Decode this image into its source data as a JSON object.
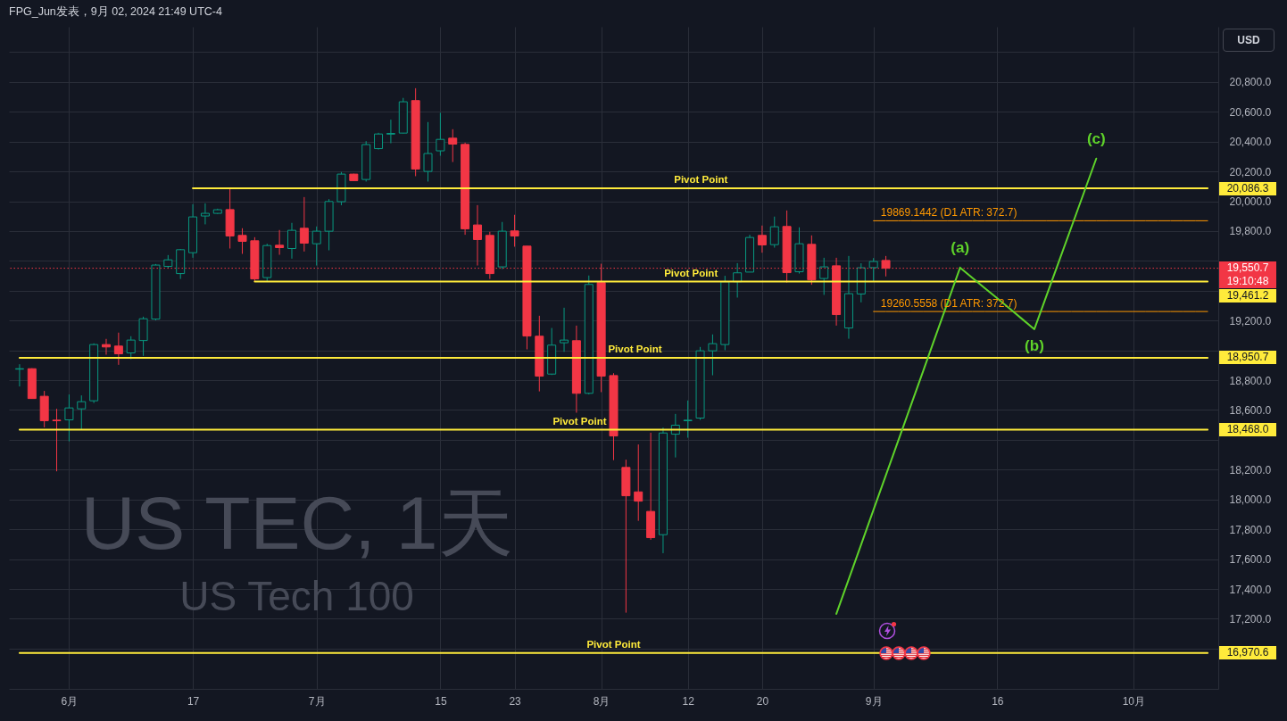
{
  "chart_data": {
    "type": "candlestick",
    "title": "US TEC, 1天",
    "subtitle": "US Tech 100",
    "categories": [
      null,
      null,
      null,
      null,
      "6月",
      null,
      null,
      null,
      null,
      null,
      null,
      null,
      null,
      null,
      "17",
      null,
      null,
      null,
      null,
      null,
      null,
      null,
      null,
      null,
      "7月",
      null,
      null,
      null,
      null,
      null,
      null,
      null,
      null,
      null,
      "15",
      null,
      null,
      null,
      null,
      null,
      "23",
      null,
      null,
      null,
      null,
      null,
      null,
      "8月",
      null,
      null,
      null,
      null,
      null,
      null,
      "12",
      null,
      null,
      null,
      null,
      null,
      "20",
      null,
      null,
      null,
      null,
      null,
      null,
      null,
      null,
      "9月",
      null,
      null,
      null,
      null,
      null,
      null,
      null,
      null,
      null,
      "16",
      null,
      null,
      null,
      null,
      null,
      null,
      null,
      null,
      null,
      null,
      "10月",
      null,
      null,
      null,
      null,
      null,
      null
    ],
    "ohlc": [
      [
        18874,
        18907,
        18758,
        18877
      ],
      [
        18877,
        18880,
        18675,
        18677
      ],
      [
        18692,
        18728,
        18484,
        18528
      ],
      [
        18532,
        18608,
        18189,
        18528
      ],
      [
        18534,
        18704,
        18390,
        18614
      ],
      [
        18608,
        18698,
        18468,
        18656
      ],
      [
        18662,
        19047,
        18647,
        19039
      ],
      [
        19039,
        19077,
        18971,
        19023
      ],
      [
        19029,
        19119,
        18903,
        18977
      ],
      [
        18983,
        19095,
        18941,
        19069
      ],
      [
        19066,
        19226,
        18963,
        19212
      ],
      [
        19210,
        19579,
        19202,
        19572
      ],
      [
        19563,
        19639,
        19549,
        19607
      ],
      [
        19515,
        19680,
        19479,
        19675
      ],
      [
        19655,
        19980,
        19621,
        19895
      ],
      [
        19901,
        19986,
        19845,
        19919
      ],
      [
        19919,
        19950,
        19915,
        19943
      ],
      [
        19944,
        20088,
        19683,
        19767
      ],
      [
        19771,
        19819,
        19647,
        19731
      ],
      [
        19735,
        19759,
        19460,
        19479
      ],
      [
        19488,
        19715,
        19461,
        19703
      ],
      [
        19705,
        19807,
        19641,
        19689
      ],
      [
        19683,
        19855,
        19615,
        19805
      ],
      [
        19819,
        20028,
        19663,
        19719
      ],
      [
        19715,
        19831,
        19569,
        19799
      ],
      [
        19799,
        20014,
        19671,
        19998
      ],
      [
        19997,
        20196,
        19973,
        20182
      ],
      [
        20182,
        20185,
        20136,
        20138
      ],
      [
        20146,
        20403,
        20132,
        20380
      ],
      [
        20353,
        20459,
        20347,
        20451
      ],
      [
        20450,
        20547,
        20389,
        20455
      ],
      [
        20457,
        20693,
        20455,
        20667
      ],
      [
        20675,
        20758,
        20168,
        20216
      ],
      [
        20200,
        20531,
        20132,
        20320
      ],
      [
        20338,
        20593,
        20305,
        20415
      ],
      [
        20423,
        20483,
        20263,
        20383
      ],
      [
        20381,
        20393,
        19775,
        19815
      ],
      [
        19841,
        19974,
        19569,
        19743
      ],
      [
        19771,
        19795,
        19479,
        19515
      ],
      [
        19560,
        19861,
        19545,
        19799
      ],
      [
        19801,
        19909,
        19695,
        19767
      ],
      [
        19699,
        19700,
        19007,
        19096
      ],
      [
        19095,
        19232,
        18725,
        18827
      ],
      [
        18841,
        19150,
        18835,
        19035
      ],
      [
        19051,
        19286,
        18990,
        19069
      ],
      [
        19065,
        19166,
        18582,
        18712
      ],
      [
        18712,
        19502,
        18705,
        19442
      ],
      [
        19455,
        19581,
        18720,
        18827
      ],
      [
        18831,
        18847,
        18264,
        18426
      ],
      [
        18215,
        18267,
        17241,
        18025
      ],
      [
        18051,
        18369,
        17857,
        17989
      ],
      [
        17920,
        18448,
        17730,
        17744
      ],
      [
        17764,
        18482,
        17640,
        18446
      ],
      [
        18438,
        18574,
        18282,
        18498
      ],
      [
        18528,
        18664,
        18414,
        18532
      ],
      [
        18546,
        19023,
        18534,
        18997
      ],
      [
        18997,
        19107,
        18833,
        19045
      ],
      [
        19039,
        19500,
        19001,
        19460
      ],
      [
        19460,
        19585,
        19354,
        19520
      ],
      [
        19525,
        19775,
        19525,
        19757
      ],
      [
        19771,
        19837,
        19655,
        19707
      ],
      [
        19709,
        19897,
        19689,
        19829
      ],
      [
        19831,
        19938,
        19455,
        19521
      ],
      [
        19527,
        19825,
        19515,
        19715
      ],
      [
        19711,
        19771,
        19440,
        19473
      ],
      [
        19482,
        19621,
        19372,
        19560
      ],
      [
        19567,
        19621,
        19166,
        19240
      ],
      [
        19150,
        19633,
        19078,
        19380
      ],
      [
        19378,
        19584,
        19322,
        19554
      ],
      [
        19555,
        19619,
        19460,
        19596
      ],
      [
        19603,
        19633,
        19496,
        19550.7
      ],
      null,
      null,
      null,
      null,
      null,
      null,
      null,
      null,
      null,
      null,
      null,
      null,
      null,
      null,
      null,
      null,
      null,
      null,
      null,
      null,
      null,
      null,
      null,
      null,
      null,
      null
    ],
    "colors": [
      "#089981",
      "#f23645",
      "#f23645",
      "#f23645",
      "#089981",
      "#089981",
      "#089981",
      "#f23645",
      "#f23645",
      "#089981",
      "#089981",
      "#089981",
      "#089981",
      "#089981",
      "#089981",
      "#089981",
      "#089981",
      "#f23645",
      "#f23645",
      "#f23645",
      "#089981",
      "#f23645",
      "#089981",
      "#f23645",
      "#089981",
      "#089981",
      "#089981",
      "#f23645",
      "#089981",
      "#089981",
      "#089981",
      "#089981",
      "#f23645",
      "#089981",
      "#089981",
      "#f23645",
      "#f23645",
      "#f23645",
      "#f23645",
      "#089981",
      "#f23645",
      "#f23645",
      "#f23645",
      "#089981",
      "#089981",
      "#f23645",
      "#089981",
      "#f23645",
      "#f23645",
      "#f23645",
      "#f23645",
      "#f23645",
      "#089981",
      "#089981",
      "#089981",
      "#089981",
      "#089981",
      "#089981",
      "#089981",
      "#089981",
      "#f23645",
      "#089981",
      "#f23645",
      "#089981",
      "#f23645",
      "#089981",
      "#f23645",
      "#089981",
      "#089981",
      "#089981",
      "#f23645",
      null,
      null,
      null,
      null,
      null,
      null,
      null,
      null,
      null,
      null,
      null,
      null,
      null,
      null,
      null,
      null,
      null,
      null,
      null,
      null,
      null,
      null,
      null,
      null,
      null,
      null
    ],
    "series": [
      {
        "name": "Pivot Point",
        "type": "line",
        "color": "#ffeb3b",
        "values": [
          null,
          null,
          null,
          null,
          null,
          null,
          null,
          null,
          null,
          null,
          null,
          null,
          null,
          null,
          20086.3,
          20086.3,
          20086.3,
          20086.3,
          20086.3,
          20086.3,
          20086.3,
          20086.3,
          20086.3,
          20086.3,
          20086.3,
          20086.3,
          20086.3,
          20086.3,
          20086.3,
          20086.3,
          20086.3,
          20086.3,
          20086.3,
          20086.3,
          20086.3,
          20086.3,
          20086.3,
          20086.3,
          20086.3,
          20086.3,
          20086.3,
          20086.3,
          20086.3,
          20086.3,
          20086.3,
          20086.3,
          20086.3,
          20086.3,
          20086.3,
          20086.3,
          20086.3,
          20086.3,
          20086.3,
          20086.3,
          20086.3,
          20086.3,
          20086.3,
          20086.3,
          20086.3,
          20086.3,
          20086.3,
          20086.3,
          20086.3,
          20086.3,
          20086.3,
          20086.3,
          20086.3,
          20086.3,
          20086.3,
          20086.3,
          20086.3,
          20086.3,
          20086.3,
          20086.3,
          20086.3,
          20086.3,
          20086.3,
          20086.3,
          20086.3,
          20086.3,
          20086.3,
          20086.3,
          20086.3,
          20086.3,
          20086.3,
          20086.3,
          20086.3,
          20086.3,
          20086.3,
          20086.3,
          20086.3,
          20086.3,
          20086.3,
          20086.3,
          20086.3,
          20086.3,
          20086.3
        ],
        "value_labels": [
          null,
          null,
          null,
          null,
          null,
          null,
          null,
          null,
          null,
          null,
          null,
          null,
          null,
          null,
          null,
          null,
          null,
          null,
          null,
          null,
          null,
          null,
          null,
          null,
          null,
          null,
          null,
          null,
          null,
          null,
          null,
          null,
          null,
          null,
          null,
          null,
          null,
          null,
          null,
          null,
          null,
          null,
          null,
          null,
          null,
          null,
          null,
          null,
          null,
          null,
          null,
          null,
          null,
          null,
          null,
          null,
          null,
          null,
          null,
          null,
          null,
          null,
          null,
          null,
          null,
          null,
          null,
          null,
          null,
          null,
          null,
          null,
          null,
          null,
          null,
          null,
          null,
          null,
          null,
          null,
          null,
          null,
          null,
          null,
          null,
          null,
          null,
          null,
          null,
          null,
          null,
          null,
          null,
          null,
          null,
          null,
          "20,086.3"
        ]
      },
      {
        "name": "Pivot Point",
        "type": "line",
        "color": "#ffeb3b",
        "values": [
          null,
          null,
          null,
          null,
          null,
          null,
          null,
          null,
          null,
          null,
          null,
          null,
          null,
          null,
          null,
          null,
          null,
          null,
          null,
          19461.2,
          19461.2,
          19461.2,
          19461.2,
          19461.2,
          19461.2,
          19461.2,
          19461.2,
          19461.2,
          19461.2,
          19461.2,
          19461.2,
          19461.2,
          19461.2,
          19461.2,
          19461.2,
          19461.2,
          19461.2,
          19461.2,
          19461.2,
          19461.2,
          19461.2,
          19461.2,
          19461.2,
          19461.2,
          19461.2,
          19461.2,
          19461.2,
          19461.2,
          19461.2,
          19461.2,
          19461.2,
          19461.2,
          19461.2,
          19461.2,
          19461.2,
          19461.2,
          19461.2,
          19461.2,
          19461.2,
          19461.2,
          19461.2,
          19461.2,
          19461.2,
          19461.2,
          19461.2,
          19461.2,
          19461.2,
          19461.2,
          19461.2,
          19461.2,
          19461.2,
          19461.2,
          19461.2,
          19461.2,
          19461.2,
          19461.2,
          19461.2,
          19461.2,
          19461.2,
          19461.2,
          19461.2,
          19461.2,
          19461.2,
          19461.2,
          19461.2,
          19461.2,
          19461.2,
          19461.2,
          19461.2,
          19461.2,
          19461.2,
          19461.2,
          19461.2,
          19461.2,
          19461.2,
          19461.2,
          19461.2
        ],
        "value_labels": [
          null,
          null,
          null,
          null,
          null,
          null,
          null,
          null,
          null,
          null,
          null,
          null,
          null,
          null,
          null,
          null,
          null,
          null,
          null,
          null,
          null,
          null,
          null,
          null,
          null,
          null,
          null,
          null,
          null,
          null,
          null,
          null,
          null,
          null,
          null,
          null,
          null,
          null,
          null,
          null,
          null,
          null,
          null,
          null,
          null,
          null,
          null,
          null,
          null,
          null,
          null,
          null,
          null,
          null,
          null,
          null,
          null,
          null,
          null,
          null,
          null,
          null,
          null,
          null,
          null,
          null,
          null,
          null,
          null,
          null,
          null,
          null,
          null,
          null,
          null,
          null,
          null,
          null,
          null,
          null,
          null,
          null,
          null,
          null,
          null,
          null,
          null,
          null,
          null,
          null,
          null,
          null,
          null,
          null,
          null,
          null,
          "19,461.2"
        ]
      },
      {
        "name": "Pivot Point",
        "type": "line",
        "color": "#ffeb3b",
        "values": [
          18950.7,
          18950.7,
          18950.7,
          18950.7,
          18950.7,
          18950.7,
          18950.7,
          18950.7,
          18950.7,
          18950.7,
          18950.7,
          18950.7,
          18950.7,
          18950.7,
          18950.7,
          18950.7,
          18950.7,
          18950.7,
          18950.7,
          18950.7,
          18950.7,
          18950.7,
          18950.7,
          18950.7,
          18950.7,
          18950.7,
          18950.7,
          18950.7,
          18950.7,
          18950.7,
          18950.7,
          18950.7,
          18950.7,
          18950.7,
          18950.7,
          18950.7,
          18950.7,
          18950.7,
          18950.7,
          18950.7,
          18950.7,
          18950.7,
          18950.7,
          18950.7,
          18950.7,
          18950.7,
          18950.7,
          18950.7,
          18950.7,
          18950.7,
          18950.7,
          18950.7,
          18950.7,
          18950.7,
          18950.7,
          18950.7,
          18950.7,
          18950.7,
          18950.7,
          18950.7,
          18950.7,
          18950.7,
          18950.7,
          18950.7,
          18950.7,
          18950.7,
          18950.7,
          18950.7,
          18950.7,
          18950.7,
          18950.7,
          18950.7,
          18950.7,
          18950.7,
          18950.7,
          18950.7,
          18950.7,
          18950.7,
          18950.7,
          18950.7,
          18950.7,
          18950.7,
          18950.7,
          18950.7,
          18950.7,
          18950.7,
          18950.7,
          18950.7,
          18950.7,
          18950.7,
          18950.7,
          18950.7,
          18950.7,
          18950.7,
          18950.7,
          18950.7,
          18950.7
        ],
        "value_labels": [
          null,
          null,
          null,
          null,
          null,
          null,
          null,
          null,
          null,
          null,
          null,
          null,
          null,
          null,
          null,
          null,
          null,
          null,
          null,
          null,
          null,
          null,
          null,
          null,
          null,
          null,
          null,
          null,
          null,
          null,
          null,
          null,
          null,
          null,
          null,
          null,
          null,
          null,
          null,
          null,
          null,
          null,
          null,
          null,
          null,
          null,
          null,
          null,
          null,
          null,
          null,
          null,
          null,
          null,
          null,
          null,
          null,
          null,
          null,
          null,
          null,
          null,
          null,
          null,
          null,
          null,
          null,
          null,
          null,
          null,
          null,
          null,
          null,
          null,
          null,
          null,
          null,
          null,
          null,
          null,
          null,
          null,
          null,
          null,
          null,
          null,
          null,
          null,
          null,
          null,
          null,
          null,
          null,
          null,
          null,
          null,
          "18,950.7"
        ]
      },
      {
        "name": "Pivot Point",
        "type": "line",
        "color": "#ffeb3b",
        "values": [
          18468.0,
          18468.0,
          18468.0,
          18468.0,
          18468.0,
          18468.0,
          18468.0,
          18468.0,
          18468.0,
          18468.0,
          18468.0,
          18468.0,
          18468.0,
          18468.0,
          18468.0,
          18468.0,
          18468.0,
          18468.0,
          18468.0,
          18468.0,
          18468.0,
          18468.0,
          18468.0,
          18468.0,
          18468.0,
          18468.0,
          18468.0,
          18468.0,
          18468.0,
          18468.0,
          18468.0,
          18468.0,
          18468.0,
          18468.0,
          18468.0,
          18468.0,
          18468.0,
          18468.0,
          18468.0,
          18468.0,
          18468.0,
          18468.0,
          18468.0,
          18468.0,
          18468.0,
          18468.0,
          18468.0,
          18468.0,
          18468.0,
          18468.0,
          18468.0,
          18468.0,
          18468.0,
          18468.0,
          18468.0,
          18468.0,
          18468.0,
          18468.0,
          18468.0,
          18468.0,
          18468.0,
          18468.0,
          18468.0,
          18468.0,
          18468.0,
          18468.0,
          18468.0,
          18468.0,
          18468.0,
          18468.0,
          18468.0,
          18468.0,
          18468.0,
          18468.0,
          18468.0,
          18468.0,
          18468.0,
          18468.0,
          18468.0,
          18468.0,
          18468.0,
          18468.0,
          18468.0,
          18468.0,
          18468.0,
          18468.0,
          18468.0,
          18468.0,
          18468.0,
          18468.0,
          18468.0,
          18468.0,
          18468.0,
          18468.0,
          18468.0,
          18468.0,
          18468.0
        ],
        "value_labels": [
          null,
          null,
          null,
          null,
          null,
          null,
          null,
          null,
          null,
          null,
          null,
          null,
          null,
          null,
          null,
          null,
          null,
          null,
          null,
          null,
          null,
          null,
          null,
          null,
          null,
          null,
          null,
          null,
          null,
          null,
          null,
          null,
          null,
          null,
          null,
          null,
          null,
          null,
          null,
          null,
          null,
          null,
          null,
          null,
          null,
          null,
          null,
          null,
          null,
          null,
          null,
          null,
          null,
          null,
          null,
          null,
          null,
          null,
          null,
          null,
          null,
          null,
          null,
          null,
          null,
          null,
          null,
          null,
          null,
          null,
          null,
          null,
          null,
          null,
          null,
          null,
          null,
          null,
          null,
          null,
          null,
          null,
          null,
          null,
          null,
          null,
          null,
          null,
          null,
          null,
          null,
          null,
          null,
          null,
          null,
          null,
          "18,468.0"
        ]
      },
      {
        "name": "Pivot Point",
        "type": "line",
        "color": "#ffeb3b",
        "values": [
          16970.6,
          16970.6,
          16970.6,
          16970.6,
          16970.6,
          16970.6,
          16970.6,
          16970.6,
          16970.6,
          16970.6,
          16970.6,
          16970.6,
          16970.6,
          16970.6,
          16970.6,
          16970.6,
          16970.6,
          16970.6,
          16970.6,
          16970.6,
          16970.6,
          16970.6,
          16970.6,
          16970.6,
          16970.6,
          16970.6,
          16970.6,
          16970.6,
          16970.6,
          16970.6,
          16970.6,
          16970.6,
          16970.6,
          16970.6,
          16970.6,
          16970.6,
          16970.6,
          16970.6,
          16970.6,
          16970.6,
          16970.6,
          16970.6,
          16970.6,
          16970.6,
          16970.6,
          16970.6,
          16970.6,
          16970.6,
          16970.6,
          16970.6,
          16970.6,
          16970.6,
          16970.6,
          16970.6,
          16970.6,
          16970.6,
          16970.6,
          16970.6,
          16970.6,
          16970.6,
          16970.6,
          16970.6,
          16970.6,
          16970.6,
          16970.6,
          16970.6,
          16970.6,
          16970.6,
          16970.6,
          16970.6,
          16970.6,
          16970.6,
          16970.6,
          16970.6,
          16970.6,
          16970.6,
          16970.6,
          16970.6,
          16970.6,
          16970.6,
          16970.6,
          16970.6,
          16970.6,
          16970.6,
          16970.6,
          16970.6,
          16970.6,
          16970.6,
          16970.6,
          16970.6,
          16970.6,
          16970.6,
          16970.6,
          16970.6,
          16970.6,
          16970.6,
          16970.6
        ],
        "value_labels": [
          null,
          null,
          null,
          null,
          null,
          null,
          null,
          null,
          null,
          null,
          null,
          null,
          null,
          null,
          null,
          null,
          null,
          null,
          null,
          null,
          null,
          null,
          null,
          null,
          null,
          null,
          null,
          null,
          null,
          null,
          null,
          null,
          null,
          null,
          null,
          null,
          null,
          null,
          null,
          null,
          null,
          null,
          null,
          null,
          null,
          null,
          null,
          null,
          null,
          null,
          null,
          null,
          null,
          null,
          null,
          null,
          null,
          null,
          null,
          null,
          null,
          null,
          null,
          null,
          null,
          null,
          null,
          null,
          null,
          null,
          null,
          null,
          null,
          null,
          null,
          null,
          null,
          null,
          null,
          null,
          null,
          null,
          null,
          null,
          null,
          null,
          null,
          null,
          null,
          null,
          null,
          null,
          null,
          null,
          null,
          null,
          "16,970.6"
        ]
      },
      {
        "name": "19869.1442 (D1 ATR: 372.7)",
        "type": "line",
        "color": "#ff9800",
        "values": [
          null,
          null,
          null,
          null,
          null,
          null,
          null,
          null,
          null,
          null,
          null,
          null,
          null,
          null,
          null,
          null,
          null,
          null,
          null,
          null,
          null,
          null,
          null,
          null,
          null,
          null,
          null,
          null,
          null,
          null,
          null,
          null,
          null,
          null,
          null,
          null,
          null,
          null,
          null,
          null,
          null,
          null,
          null,
          null,
          null,
          null,
          null,
          null,
          null,
          null,
          null,
          null,
          null,
          null,
          null,
          null,
          null,
          null,
          null,
          null,
          null,
          null,
          null,
          null,
          null,
          null,
          null,
          null,
          null,
          19869.1442,
          19869.1442,
          19869.1442,
          19869.1442,
          19869.1442,
          19869.1442,
          19869.1442,
          19869.1442,
          19869.1442,
          19869.1442,
          19869.1442,
          19869.1442,
          19869.1442,
          19869.1442,
          19869.1442,
          19869.1442,
          19869.1442,
          19869.1442,
          19869.1442,
          19869.1442,
          19869.1442,
          19869.1442,
          19869.1442,
          19869.1442,
          19869.1442,
          19869.1442,
          19869.1442,
          19869.1442
        ]
      },
      {
        "name": "19260.5558 (D1 ATR: 372.7)",
        "type": "line",
        "color": "#ff9800",
        "values": [
          null,
          null,
          null,
          null,
          null,
          null,
          null,
          null,
          null,
          null,
          null,
          null,
          null,
          null,
          null,
          null,
          null,
          null,
          null,
          null,
          null,
          null,
          null,
          null,
          null,
          null,
          null,
          null,
          null,
          null,
          null,
          null,
          null,
          null,
          null,
          null,
          null,
          null,
          null,
          null,
          null,
          null,
          null,
          null,
          null,
          null,
          null,
          null,
          null,
          null,
          null,
          null,
          null,
          null,
          null,
          null,
          null,
          null,
          null,
          null,
          null,
          null,
          null,
          null,
          null,
          null,
          null,
          null,
          null,
          19260.5558,
          19260.5558,
          19260.5558,
          19260.5558,
          19260.5558,
          19260.5558,
          19260.5558,
          19260.5558,
          19260.5558,
          19260.5558,
          19260.5558,
          19260.5558,
          19260.5558,
          19260.5558,
          19260.5558,
          19260.5558,
          19260.5558,
          19260.5558,
          19260.5558,
          19260.5558,
          19260.5558,
          19260.5558,
          19260.5558,
          19260.5558,
          19260.5558,
          19260.5558,
          19260.5558,
          19260.5558
        ]
      },
      {
        "type": "line",
        "color": "#5fd32a",
        "values": [
          null,
          null,
          null,
          null,
          null,
          null,
          null,
          null,
          null,
          null,
          null,
          null,
          null,
          null,
          null,
          null,
          null,
          null,
          null,
          null,
          null,
          null,
          null,
          null,
          null,
          null,
          null,
          null,
          null,
          null,
          null,
          null,
          null,
          null,
          null,
          null,
          null,
          null,
          null,
          null,
          null,
          null,
          null,
          null,
          null,
          null,
          null,
          null,
          null,
          null,
          null,
          null,
          null,
          null,
          null,
          null,
          null,
          null,
          null,
          null,
          null,
          null,
          null,
          null,
          null,
          null,
          17233,
          17465,
          17697,
          17930,
          18162,
          18394,
          18626,
          18858,
          19091,
          19323,
          19555,
          19486,
          19417,
          19349,
          19280,
          19211,
          19142,
          19371,
          19600,
          19828,
          20057,
          20286,
          null,
          null,
          null,
          null,
          null,
          null,
          null,
          null,
          null
        ]
      }
    ],
    "ref_lines": [
      {
        "axis": "y",
        "value": 19550.7,
        "label": "19,550.7",
        "color": "#f23645",
        "line_style": "dotted"
      }
    ],
    "annotations": [
      "FPG_Jun发表，9月 02, 2024 21:49 UTC-4",
      "USD",
      "19:10:48",
      {
        "text": "(a)",
        "y": 19555
      },
      {
        "text": "(b)",
        "y": 19142
      },
      {
        "text": "(c)",
        "y": 20286
      }
    ],
    "ylim": [
      16730,
      21170
    ],
    "yticks": [
      {
        "value": 17000,
        "label": null
      },
      {
        "value": 17200,
        "label": "17,200.0"
      },
      {
        "value": 17400,
        "label": "17,400.0"
      },
      {
        "value": 17600,
        "label": "17,600.0"
      },
      {
        "value": 17800,
        "label": "17,800.0"
      },
      {
        "value": 18000,
        "label": "18,000.0"
      },
      {
        "value": 18200,
        "label": "18,200.0"
      },
      {
        "value": 18400,
        "label": null
      },
      {
        "value": 18600,
        "label": "18,600.0"
      },
      {
        "value": 18800,
        "label": "18,800.0"
      },
      {
        "value": 19000,
        "label": null
      },
      {
        "value": 19200,
        "label": "19,200.0"
      },
      {
        "value": 19400,
        "label": null
      },
      {
        "value": 19600,
        "label": null
      },
      {
        "value": 19800,
        "label": "19,800.0"
      },
      {
        "value": 20000,
        "label": "20,000.0"
      },
      {
        "value": 20200,
        "label": "20,200.0"
      },
      {
        "value": 20400,
        "label": "20,400.0"
      },
      {
        "value": 20600,
        "label": "20,600.0"
      },
      {
        "value": 20800,
        "label": "20,800.0"
      },
      {
        "value": 21000,
        "label": null
      }
    ],
    "grid": true
  }
}
